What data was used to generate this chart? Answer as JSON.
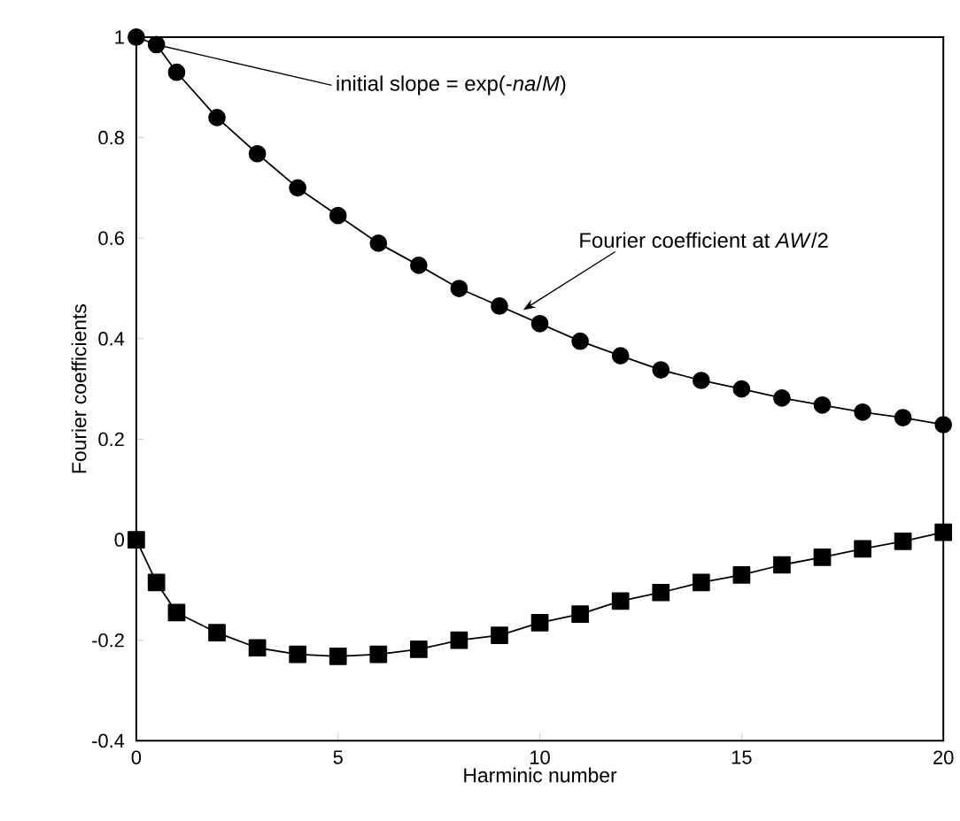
{
  "chart_data": {
    "type": "line",
    "xlabel": "Harminic number",
    "ylabel": "Fourier coefficients",
    "xlim": [
      0,
      20
    ],
    "ylim": [
      -0.4,
      1
    ],
    "xticks": [
      0,
      5,
      10,
      15,
      20
    ],
    "yticks": [
      -0.4,
      -0.2,
      0,
      0.2,
      0.4,
      0.6,
      0.8,
      1
    ],
    "series": [
      {
        "color": "#000000",
        "marker": "circle",
        "x": [
          0,
          0.5,
          1,
          2,
          3,
          4,
          5,
          6,
          7,
          8,
          9,
          10,
          11,
          12,
          13,
          14,
          15,
          16,
          17,
          18,
          19,
          20
        ],
        "values": [
          1.0,
          0.985,
          0.93,
          0.84,
          0.768,
          0.7,
          0.645,
          0.59,
          0.546,
          0.5,
          0.465,
          0.43,
          0.395,
          0.366,
          0.338,
          0.317,
          0.3,
          0.282,
          0.268,
          0.254,
          0.243,
          0.229
        ]
      },
      {
        "color": "#000000",
        "marker": "square",
        "x": [
          0,
          0.5,
          1,
          2,
          3,
          4,
          5,
          6,
          7,
          8,
          9,
          10,
          11,
          12,
          13,
          14,
          15,
          16,
          17,
          18,
          19,
          20
        ],
        "values": [
          0,
          -0.085,
          -0.145,
          -0.185,
          -0.215,
          -0.228,
          -0.232,
          -0.228,
          -0.218,
          -0.2,
          -0.19,
          -0.165,
          -0.148,
          -0.122,
          -0.105,
          -0.085,
          -0.07,
          -0.05,
          -0.035,
          -0.018,
          -0.003,
          0.015
        ]
      }
    ],
    "annotations": [
      {
        "text": "initial slope = exp(-*na*/*M*)",
        "x": 0.5,
        "y": 0.985
      },
      {
        "text": "Fourier coefficient at *AW*/2",
        "x": 9.5,
        "y": 0.45
      }
    ],
    "grid": false,
    "line_style": "solid"
  }
}
